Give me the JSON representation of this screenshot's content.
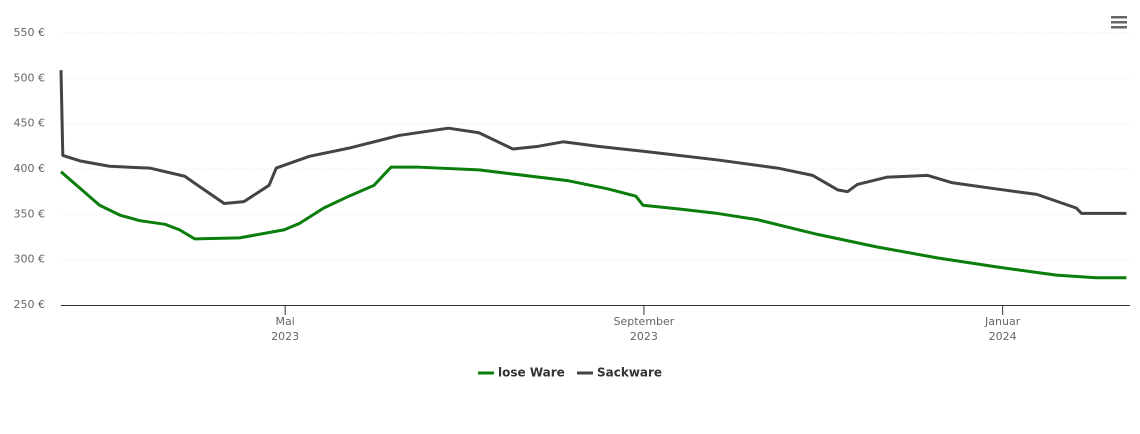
{
  "chart_data": {
    "type": "line",
    "xlim": [
      2.5,
      14.42
    ],
    "xticks": [
      {
        "value": 5,
        "label": "Mai",
        "sublabel": "2023"
      },
      {
        "value": 9,
        "label": "September",
        "sublabel": "2023"
      },
      {
        "value": 13,
        "label": "Januar",
        "sublabel": "2024"
      }
    ],
    "ylim": [
      250,
      550
    ],
    "yticks": [
      {
        "value": 250,
        "label": "250 €"
      },
      {
        "value": 300,
        "label": "300 €"
      },
      {
        "value": 350,
        "label": "350 €"
      },
      {
        "value": 400,
        "label": "400 €"
      },
      {
        "value": 450,
        "label": "450 €"
      },
      {
        "value": 500,
        "label": "500 €"
      },
      {
        "value": 550,
        "label": "550 €"
      }
    ],
    "grid": true,
    "legend": "bottom",
    "series": [
      {
        "name": "lose Ware",
        "color": "#0a7d0a",
        "x": [
          2.5,
          2.93,
          3.16,
          3.38,
          3.66,
          3.82,
          3.99,
          4.49,
          4.99,
          5.16,
          5.43,
          5.71,
          5.99,
          6.18,
          6.49,
          7.16,
          8.16,
          8.6,
          8.91,
          8.99,
          9.38,
          9.82,
          10.27,
          10.93,
          11.6,
          12.27,
          12.93,
          13.6,
          14.04,
          14.38
        ],
        "values": [
          397,
          360,
          349,
          343,
          339,
          333,
          323,
          324,
          333,
          340,
          357,
          370,
          382,
          402,
          402,
          399,
          387,
          378,
          370,
          360,
          356,
          351,
          344,
          328,
          314,
          302,
          292,
          283,
          280,
          280
        ]
      },
      {
        "name": "Sackware",
        "color": "#434348",
        "x": [
          2.5,
          2.52,
          2.71,
          3.04,
          3.49,
          3.88,
          4.04,
          4.32,
          4.54,
          4.82,
          4.9,
          5.27,
          5.71,
          6.27,
          6.82,
          7.16,
          7.54,
          7.82,
          8.1,
          8.49,
          9.04,
          9.82,
          10.49,
          10.88,
          11.16,
          11.27,
          11.38,
          11.71,
          12.16,
          12.43,
          12.93,
          13.38,
          13.82,
          13.88,
          14.38
        ],
        "values": [
          509,
          415,
          409,
          403,
          401,
          392,
          381,
          362,
          364,
          382,
          401,
          414,
          423,
          437,
          445,
          440,
          422,
          425,
          430,
          425,
          419,
          410,
          401,
          393,
          377,
          375,
          383,
          391,
          393,
          385,
          378,
          372,
          357,
          351,
          351
        ]
      }
    ]
  }
}
